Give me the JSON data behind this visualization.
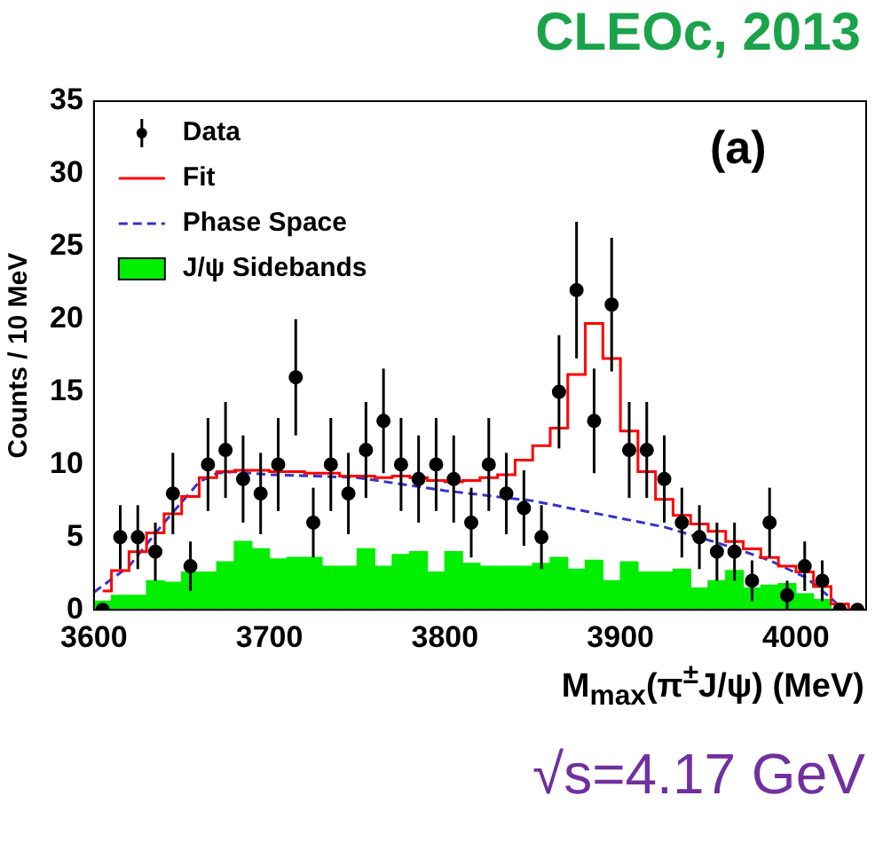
{
  "chart_data": {
    "type": "histogram",
    "title": "CLEOc, 2013",
    "xlabel": "M$_{max}$(π$^{±}$J/ψ) (MeV)",
    "ylabel": "Counts / 10 MeV",
    "annotations": [
      "(a)",
      "√s=4.17 GeV"
    ],
    "bins": [
      3600,
      3610,
      3620,
      3630,
      3640,
      3650,
      3660,
      3670,
      3680,
      3690,
      3700,
      3710,
      3720,
      3730,
      3740,
      3750,
      3760,
      3770,
      3780,
      3790,
      3800,
      3810,
      3820,
      3830,
      3840,
      3850,
      3860,
      3870,
      3880,
      3890,
      3900,
      3910,
      3920,
      3930,
      3940,
      3950,
      3960,
      3970,
      3980,
      3990,
      4000,
      4010,
      4020,
      4030,
      4040
    ],
    "xlim": [
      3600,
      4040
    ],
    "xticks": [
      3600,
      3700,
      3800,
      3900,
      4000
    ],
    "ylim": [
      0,
      35
    ],
    "yticks": [
      0,
      5,
      10,
      15,
      20,
      25,
      30,
      35
    ],
    "grid": false,
    "legend": "top left",
    "series": [
      {
        "name": "J/ψ Sidebands",
        "color": "#00ee00",
        "values": [
          0.6,
          1,
          1,
          2,
          1.9,
          2.6,
          2.6,
          3.3,
          4.7,
          4.2,
          3.5,
          3.6,
          3.6,
          3,
          3,
          4.2,
          3,
          3.8,
          4,
          2.6,
          4,
          3.2,
          3,
          3,
          3,
          3.2,
          3.6,
          2.8,
          3.4,
          2,
          3.3,
          2.6,
          2.6,
          2.8,
          1.5,
          2,
          2.7,
          1.5,
          1.7,
          1.8,
          1.1,
          0.7,
          0,
          0
        ]
      },
      {
        "name": "Phase Space",
        "type": "line",
        "color": "#3333cc",
        "line_style": "dashed",
        "x": [
          3600,
          3610,
          3620,
          3630,
          3640,
          3650,
          3660,
          3670,
          3680,
          3700,
          3750,
          3800,
          3850,
          3900,
          3925,
          3950,
          3966,
          3985,
          4006,
          4020,
          4027
        ],
        "values": [
          1.2,
          2.1,
          3,
          4.5,
          6,
          7.4,
          8.8,
          9.4,
          9.5,
          9.3,
          9.1,
          8.2,
          7.5,
          6.3,
          5.7,
          4.8,
          4.2,
          3.4,
          2.2,
          0.8,
          0
        ]
      },
      {
        "name": "Fit",
        "type": "step",
        "color": "#ff0000",
        "x": [
          3605,
          3615,
          3625,
          3635,
          3645,
          3655,
          3665,
          3675,
          3685,
          3695,
          3705,
          3715,
          3725,
          3735,
          3745,
          3755,
          3765,
          3775,
          3785,
          3795,
          3805,
          3815,
          3825,
          3835,
          3845,
          3855,
          3865,
          3875,
          3885,
          3895,
          3905,
          3915,
          3925,
          3935,
          3945,
          3955,
          3965,
          3975,
          3985,
          3995,
          4005,
          4015,
          4025,
          4035
        ],
        "values": [
          1.3,
          2.7,
          4,
          5.3,
          6.6,
          7.8,
          9.1,
          9.5,
          9.6,
          9.6,
          9.5,
          9.5,
          9.4,
          9.4,
          9.2,
          9.2,
          9.1,
          9.2,
          9.1,
          8.9,
          8.8,
          8.9,
          9.1,
          9.3,
          10.3,
          11.3,
          12.5,
          16.2,
          19.7,
          17.3,
          12.3,
          9.5,
          7.6,
          6.5,
          5.9,
          5.4,
          4.7,
          4.2,
          3.6,
          3,
          2.6,
          1.6,
          0.4,
          0
        ]
      },
      {
        "name": "Data",
        "type": "scatter",
        "marker": "circle",
        "color": "#000000",
        "x": [
          3605,
          3615,
          3625,
          3635,
          3645,
          3655,
          3665,
          3675,
          3685,
          3695,
          3705,
          3715,
          3725,
          3735,
          3745,
          3755,
          3765,
          3775,
          3785,
          3795,
          3805,
          3815,
          3825,
          3835,
          3845,
          3855,
          3865,
          3875,
          3885,
          3895,
          3905,
          3915,
          3925,
          3935,
          3945,
          3955,
          3965,
          3975,
          3985,
          3995,
          4005,
          4015,
          4025,
          4035
        ],
        "values": [
          0,
          5,
          5,
          4,
          8,
          3,
          10,
          11,
          9,
          8,
          10,
          16,
          6,
          10,
          8,
          11,
          13,
          10,
          9,
          10,
          9,
          6,
          10,
          8,
          7,
          5,
          15,
          22,
          13,
          21,
          11,
          11,
          9,
          6,
          5,
          4,
          4,
          2,
          6,
          1,
          3,
          2,
          0,
          0
        ],
        "errors": [
          null,
          2.2,
          2.2,
          2,
          2.8,
          1.7,
          3.2,
          3.3,
          3,
          2.8,
          3.2,
          4,
          2.4,
          3.2,
          2.8,
          3.3,
          3.6,
          3.2,
          3,
          3.2,
          3,
          2.4,
          3.2,
          2.8,
          2.6,
          2.2,
          3.9,
          4.7,
          3.6,
          4.6,
          3.3,
          3.3,
          3,
          2.4,
          2.2,
          2,
          2,
          1.4,
          2.4,
          1,
          1.7,
          1.4,
          null,
          null
        ]
      }
    ]
  }
}
